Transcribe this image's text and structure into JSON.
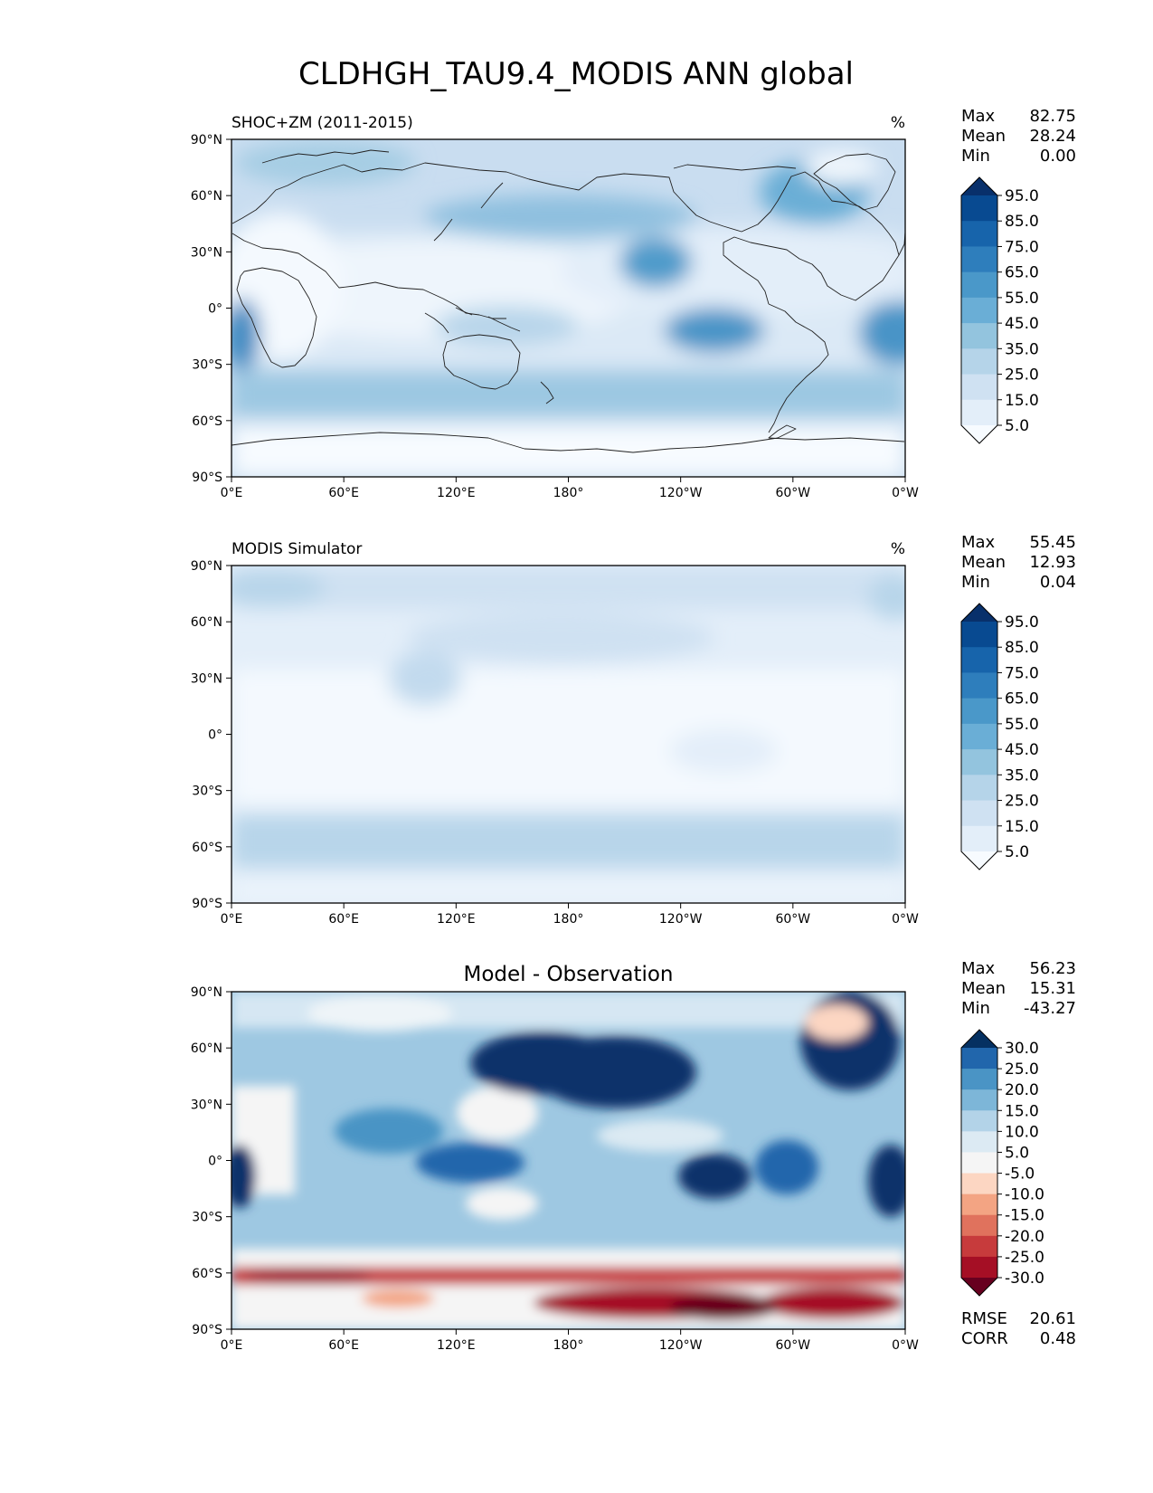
{
  "figure": {
    "title": "CLDHGH_TAU9.4_MODIS ANN global"
  },
  "axes": {
    "lat_ticks": [
      "90°N",
      "60°N",
      "30°N",
      "0°",
      "30°S",
      "60°S",
      "90°S"
    ],
    "lon_ticks": [
      "0°E",
      "60°E",
      "120°E",
      "180°",
      "120°W",
      "60°W",
      "0°W"
    ]
  },
  "panels": [
    {
      "id": "test",
      "left_title": "SHOC+ZM (2011-2015)",
      "center_title": "",
      "units": "%",
      "stats": [
        {
          "label": "Max",
          "value": "82.75"
        },
        {
          "label": "Mean",
          "value": "28.24"
        },
        {
          "label": "Min",
          "value": "0.00"
        }
      ],
      "colorbar_ticks": [
        "95.0",
        "85.0",
        "75.0",
        "65.0",
        "55.0",
        "45.0",
        "35.0",
        "25.0",
        "15.0",
        "5.0"
      ],
      "colorbar_colors": [
        "#f7fbff",
        "#e3eef9",
        "#cfe1f2",
        "#b5d4e9",
        "#93c4de",
        "#6aaed6",
        "#4a98c9",
        "#2e7ebc",
        "#1764ab",
        "#084a91",
        "#08306b"
      ],
      "footer_stats": []
    },
    {
      "id": "reference",
      "left_title": "MODIS Simulator",
      "center_title": "",
      "units": "%",
      "stats": [
        {
          "label": "Max",
          "value": "55.45"
        },
        {
          "label": "Mean",
          "value": "12.93"
        },
        {
          "label": "Min",
          "value": "0.04"
        }
      ],
      "colorbar_ticks": [
        "95.0",
        "85.0",
        "75.0",
        "65.0",
        "55.0",
        "45.0",
        "35.0",
        "25.0",
        "15.0",
        "5.0"
      ],
      "colorbar_colors": [
        "#f7fbff",
        "#e3eef9",
        "#cfe1f2",
        "#b5d4e9",
        "#93c4de",
        "#6aaed6",
        "#4a98c9",
        "#2e7ebc",
        "#1764ab",
        "#084a91",
        "#08306b"
      ],
      "footer_stats": []
    },
    {
      "id": "difference",
      "left_title": "",
      "center_title": "Model - Observation",
      "units": "",
      "stats": [
        {
          "label": "Max",
          "value": "56.23"
        },
        {
          "label": "Mean",
          "value": "15.31"
        },
        {
          "label": "Min",
          "value": "-43.27"
        }
      ],
      "colorbar_ticks": [
        "30.0",
        "25.0",
        "20.0",
        "15.0",
        "10.0",
        "5.0",
        "-5.0",
        "-10.0",
        "-15.0",
        "-20.0",
        "-25.0",
        "-30.0"
      ],
      "colorbar_colors": [
        "#67001f",
        "#a50f25",
        "#c73b3c",
        "#e0725d",
        "#f3a483",
        "#fcd6c2",
        "#f5f5f5",
        "#dceaf3",
        "#b3d3e8",
        "#7db6d8",
        "#4a94c5",
        "#2166ac",
        "#053061"
      ],
      "footer_stats": [
        {
          "label": "RMSE",
          "value": "20.61"
        },
        {
          "label": "CORR",
          "value": "0.48"
        }
      ]
    }
  ]
}
